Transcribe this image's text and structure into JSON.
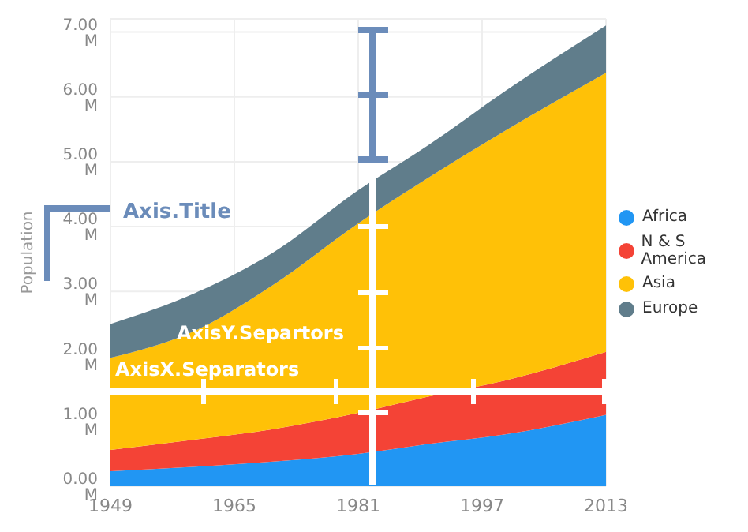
{
  "chart_data": {
    "type": "area",
    "stacked": true,
    "ylabel": "Population",
    "x": [
      1949,
      1960,
      1970,
      1981,
      1990,
      2000,
      2013
    ],
    "series": [
      {
        "name": "Africa",
        "color": "#2196f3",
        "values": [
          0.23,
          0.3,
          0.38,
          0.5,
          0.65,
          0.8,
          1.1
        ]
      },
      {
        "name": "N & S America",
        "color": "#f44336",
        "values": [
          0.33,
          0.42,
          0.5,
          0.63,
          0.73,
          0.83,
          0.97
        ]
      },
      {
        "name": "Asia",
        "color": "#ffc107",
        "values": [
          1.42,
          1.68,
          2.22,
          2.92,
          3.37,
          3.85,
          4.3
        ]
      },
      {
        "name": "Europe",
        "color": "#607d8b",
        "values": [
          0.52,
          0.58,
          0.5,
          0.51,
          0.5,
          0.61,
          0.73
        ]
      }
    ],
    "xlim": [
      1949,
      2013
    ],
    "xticks": [
      1949,
      1965,
      1981,
      1997,
      2013
    ],
    "ylim": [
      0,
      7.2
    ],
    "yticks": [
      {
        "value": 0,
        "label": "0.00 M"
      },
      {
        "value": 1,
        "label": "1.00 M"
      },
      {
        "value": 2,
        "label": "2.00 M"
      },
      {
        "value": 3,
        "label": "3.00 M"
      },
      {
        "value": 4,
        "label": "4.00 M"
      },
      {
        "value": 5,
        "label": "5.00 M"
      },
      {
        "value": 6,
        "label": "6.00 M"
      },
      {
        "value": 7,
        "label": "7.00 M"
      }
    ],
    "grid": true,
    "legend": "right",
    "annotations": [
      "Axis.Title",
      "AxisY.Separtors",
      "AxisX.Separators"
    ]
  }
}
